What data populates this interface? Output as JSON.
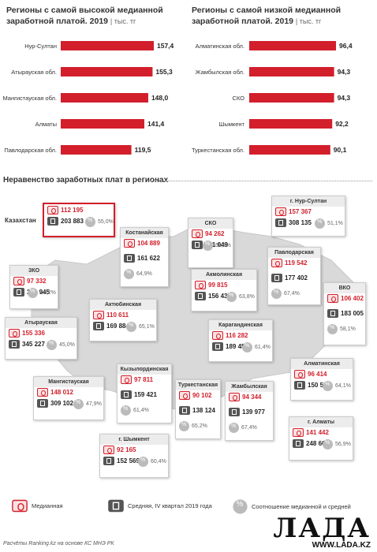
{
  "chart_data": [
    {
      "type": "bar",
      "title": "Регионы с самой высокой медианной заработной платой. 2019",
      "unit": "тыс. тг",
      "categories": [
        "Нур-Султан",
        "Атырауская обл.",
        "Мангистауская обл.",
        "Алматы",
        "Павлодарская обл."
      ],
      "values": [
        157.4,
        155.3,
        148.0,
        141.4,
        119.5
      ],
      "value_labels": [
        "157,4",
        "155,3",
        "148,0",
        "141,4",
        "119,5"
      ],
      "color": "#d21f2b"
    },
    {
      "type": "bar",
      "title": "Регионы с самой низкой медианной заработной платой. 2019",
      "unit": "тыс. тг",
      "categories": [
        "Алматинская обл.",
        "Жамбылская обл.",
        "СКО",
        "Шымкент",
        "Туркестанская обл."
      ],
      "values": [
        96.4,
        94.3,
        94.3,
        92.2,
        90.1
      ],
      "value_labels": [
        "96,4",
        "94,3",
        "94,3",
        "92,2",
        "90,1"
      ],
      "color": "#d21f2b"
    },
    {
      "type": "table",
      "title": "Неравенство заработных плат в регионах",
      "columns": [
        "Медианная",
        "Средняя, IV квартал 2019 года",
        "Соотношение медианной и средней"
      ],
      "rows": [
        {
          "region": "Казахстан",
          "median": "112 195",
          "average": "203 883",
          "ratio": "55,0%"
        },
        {
          "region": "г. Нур-Султан",
          "median": "157 367",
          "average": "308 135",
          "ratio": "51,1%"
        },
        {
          "region": "Костанайская",
          "median": "104 889",
          "average": "161 622",
          "ratio": "64,9%"
        },
        {
          "region": "СКО",
          "median": "94 262",
          "average": "141 049",
          "ratio": "66,8%"
        },
        {
          "region": "Павлодарская",
          "median": "119 542",
          "average": "177 402",
          "ratio": "67,4%"
        },
        {
          "region": "ЗКО",
          "median": "97 332",
          "average": "201 945",
          "ratio": "48,2%"
        },
        {
          "region": "Акмолинская",
          "median": "99 815",
          "average": "156 438",
          "ratio": "63,8%"
        },
        {
          "region": "ВКО",
          "median": "106 402",
          "average": "183 005",
          "ratio": "58,1%"
        },
        {
          "region": "Актюбинская",
          "median": "110 611",
          "average": "169 884",
          "ratio": "65,1%"
        },
        {
          "region": "Атырауская",
          "median": "155 336",
          "average": "345 227",
          "ratio": "45,0%"
        },
        {
          "region": "Карагандинская",
          "median": "116 282",
          "average": "189 450",
          "ratio": "61,4%"
        },
        {
          "region": "Алматинская",
          "median": "96 414",
          "average": "150 509",
          "ratio": "64,1%"
        },
        {
          "region": "Кызылординская",
          "median": "97 811",
          "average": "159 421",
          "ratio": "61,4%"
        },
        {
          "region": "Мангистауская",
          "median": "148 012",
          "average": "309 102",
          "ratio": "47,9%"
        },
        {
          "region": "Туркестанская",
          "median": "90 102",
          "average": "138 124",
          "ratio": "65,2%"
        },
        {
          "region": "Жамбылская",
          "median": "94 344",
          "average": "139 977",
          "ratio": "67,4%"
        },
        {
          "region": "г. Алматы",
          "median": "141 442",
          "average": "248 668",
          "ratio": "56,9%"
        },
        {
          "region": "г. Шымкент",
          "median": "92 165",
          "average": "152 569",
          "ratio": "60,4%"
        }
      ]
    }
  ],
  "titles": {
    "left_main": "Регионы с самой высокой медианной заработной платой. 2019",
    "right_main": "Регионы с самой низкой медианной заработной платой. 2019",
    "unit": "тыс. тг",
    "section": "Неравенство заработных плат в регионах"
  },
  "legend": {
    "median": "Медианная",
    "average": "Средняя, IV квартал 2019 года",
    "ratio": "Соотношение медианной и средней"
  },
  "source": "Расчёты Ranking.kz на основе КС МНЭ РК",
  "logo": {
    "text": "ЛАДА",
    "url": "WWW.LADA.KZ"
  },
  "colors": {
    "accent": "#d21f2b",
    "map": "#d9d9d9"
  }
}
